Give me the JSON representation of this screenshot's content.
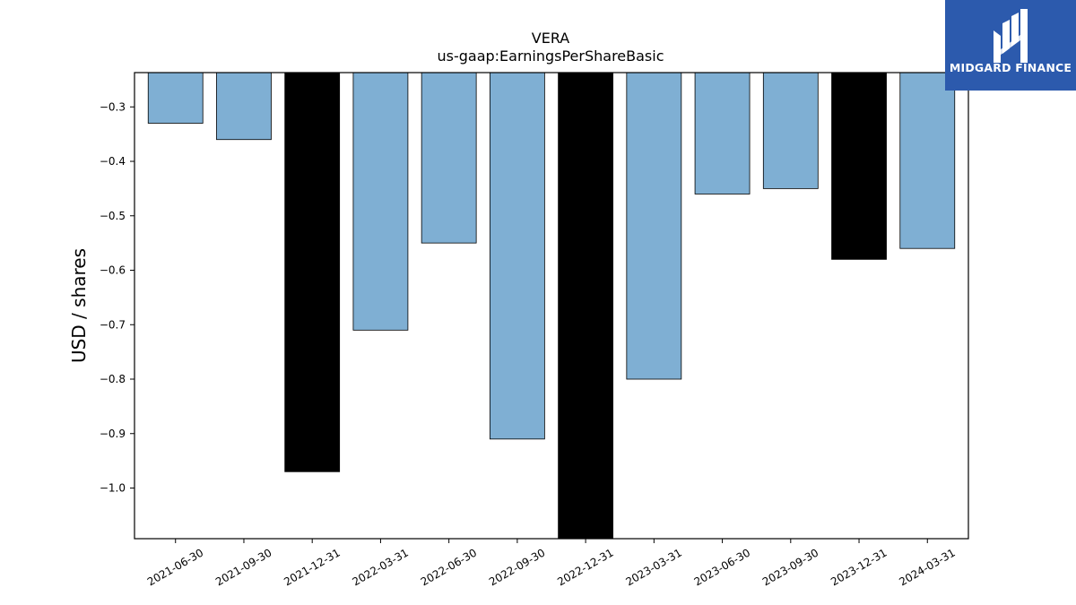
{
  "chart_data": {
    "type": "bar",
    "title": "VERA",
    "subtitle": "us-gaap:EarningsPerShareBasic",
    "xlabel": "",
    "ylabel": "USD / shares",
    "ylim": [
      -1.093,
      -0.237
    ],
    "yticks": [
      -0.3,
      -0.4,
      -0.5,
      -0.6,
      -0.7,
      -0.8,
      -0.9,
      -1.0
    ],
    "ytick_labels": [
      "−0.3",
      "−0.4",
      "−0.5",
      "−0.6",
      "−0.7",
      "−0.8",
      "−0.9",
      "−1.0"
    ],
    "grid": false,
    "categories": [
      "2021-06-30",
      "2021-09-30",
      "2021-12-31",
      "2022-03-31",
      "2022-06-30",
      "2022-09-30",
      "2022-12-31",
      "2023-03-31",
      "2023-06-30",
      "2023-09-30",
      "2023-12-31",
      "2024-03-31"
    ],
    "values": [
      -0.33,
      -0.36,
      -0.97,
      -0.71,
      -0.55,
      -0.91,
      -1.1,
      -0.8,
      -0.46,
      -0.45,
      -0.58,
      -0.56
    ],
    "bar_colors": [
      "#7fafd3",
      "#7fafd3",
      "#000000",
      "#7fafd3",
      "#7fafd3",
      "#7fafd3",
      "#000000",
      "#7fafd3",
      "#7fafd3",
      "#7fafd3",
      "#000000",
      "#7fafd3"
    ]
  },
  "logo": {
    "text": "MIDGARD FINANCE",
    "background": "#2c5aad"
  }
}
